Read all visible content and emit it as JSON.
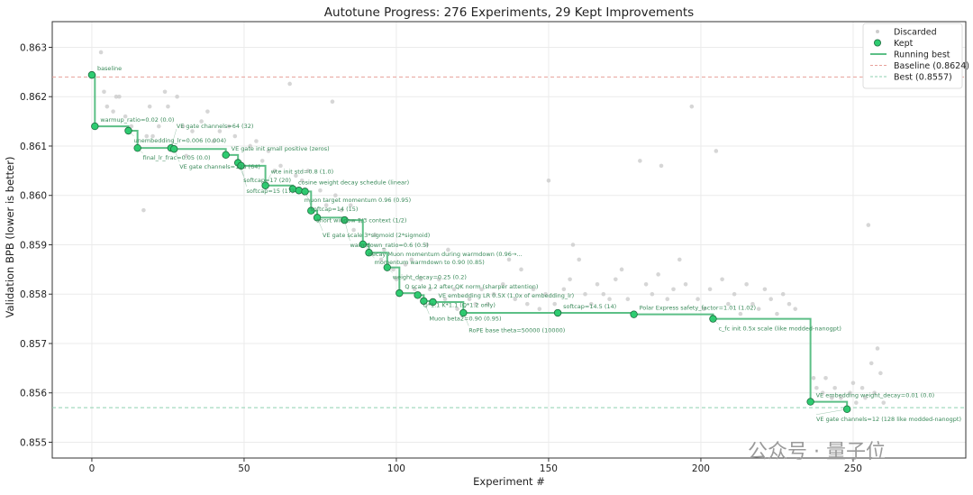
{
  "chart_data": {
    "type": "scatter",
    "title": "Autotune Progress: 276 Experiments, 29 Kept Improvements",
    "xlabel": "Experiment #",
    "ylabel": "Validation BPB (lower is better)",
    "xlim": [
      -13,
      287
    ],
    "ylim": [
      0.85468,
      0.86352
    ],
    "xticks": [
      0,
      50,
      100,
      150,
      200,
      250
    ],
    "yticks": [
      0.855,
      0.856,
      0.857,
      0.858,
      0.859,
      0.86,
      0.861,
      0.862,
      0.863
    ],
    "ytick_labels": [
      "0.855",
      "0.856",
      "0.857",
      "0.858",
      "0.859",
      "0.860",
      "0.861",
      "0.862",
      "0.863"
    ],
    "grid": true,
    "legend_position": "top-right",
    "legend": [
      "Discarded",
      "Kept",
      "Running best",
      "Baseline (0.8624)",
      "Best (0.8557)"
    ],
    "baseline": 0.8624,
    "best": 0.8557,
    "colors": {
      "kept": "#2ecc71",
      "kept_edge": "#1e6b3e",
      "running_best": "#5cbf86",
      "discarded": "#cccccc",
      "baseline": "#e8a09a",
      "best": "#8fd0b0",
      "annotation": "#3a8a5a"
    },
    "kept": [
      {
        "x": 0,
        "y": 0.86244,
        "label": "baseline"
      },
      {
        "x": 1,
        "y": 0.8614,
        "label": "warmup_ratio=0.02 (0.0)"
      },
      {
        "x": 12,
        "y": 0.86131,
        "label": "unembedding_lr=0.006 (0.004)"
      },
      {
        "x": 15,
        "y": 0.86096,
        "label": "final_lr_frac=0.05 (0.0)"
      },
      {
        "x": 26,
        "y": 0.86096,
        "label": "VE gate channels=64 (32)"
      },
      {
        "x": 27,
        "y": 0.86094,
        "label": "VE gate channels=128 (64)"
      },
      {
        "x": 44,
        "y": 0.86082,
        "label": "VE gate init small positive (zeros)"
      },
      {
        "x": 48,
        "y": 0.86066,
        "label": "softcap=17 (20)"
      },
      {
        "x": 49,
        "y": 0.8606,
        "label": "softcap=15 (17)"
      },
      {
        "x": 57,
        "y": 0.8602,
        "label": "wte init std=0.8 (1.0)"
      },
      {
        "x": 66,
        "y": 0.86013,
        "label": "cosine weight decay schedule (linear)"
      },
      {
        "x": 68,
        "y": 0.8601,
        "label": "muon target momentum 0.96 (0.95)"
      },
      {
        "x": 70,
        "y": 0.86008,
        "label": "softcap=14 (15)"
      },
      {
        "x": 72,
        "y": 0.85969,
        "label": "short window 1/3 context (1/2)"
      },
      {
        "x": 74,
        "y": 0.85955,
        "label": "VE gate scale 3*sigmoid (2*sigmoid)"
      },
      {
        "x": 83,
        "y": 0.8595,
        "label": "warmdown_ratio=0.6 (0.5)"
      },
      {
        "x": 89,
        "y": 0.85901,
        "label": "decay Muon momentum during warmdown (0.96→..."
      },
      {
        "x": 91,
        "y": 0.85884,
        "label": "momentum warmdown to 0.90 (0.85)"
      },
      {
        "x": 97,
        "y": 0.85854,
        "label": "weight_decay=0.25 (0.2)"
      },
      {
        "x": 101,
        "y": 0.85802,
        "label": "Q scale 1.2 after QK norm (sharper attention)"
      },
      {
        "x": 107,
        "y": 0.85798,
        "label": "Q*1.1 K*1.1 (Q*1.2 only)"
      },
      {
        "x": 109,
        "y": 0.85786,
        "label": "Muon beta2=0.90 (0.95)"
      },
      {
        "x": 112,
        "y": 0.85784,
        "label": "VE embedding LR 0.5X (1.0x of embedding_lr)"
      },
      {
        "x": 122,
        "y": 0.85762,
        "label": "RoPE base theta=50000 (10000)"
      },
      {
        "x": 153,
        "y": 0.85762,
        "label": "softcap=14.5 (14)"
      },
      {
        "x": 178,
        "y": 0.85759,
        "label": "Polar Express safety_factor=1.01 (1.02)"
      },
      {
        "x": 204,
        "y": 0.8575,
        "label": "c_fc init 0.5x scale (like modded-nanogpt)"
      },
      {
        "x": 236,
        "y": 0.85582,
        "label": "VE embedding weight_decay=0.01 (0.0)"
      },
      {
        "x": 248,
        "y": 0.85567,
        "label": "VE gate channels=12 (128 like modded-nanogpt)"
      }
    ],
    "discarded": [
      [
        3,
        0.8629
      ],
      [
        4,
        0.8621
      ],
      [
        5,
        0.8618
      ],
      [
        7,
        0.8617
      ],
      [
        8,
        0.862
      ],
      [
        9,
        0.862
      ],
      [
        11,
        0.8616
      ],
      [
        13,
        0.8614
      ],
      [
        17,
        0.8597
      ],
      [
        18,
        0.8612
      ],
      [
        19,
        0.8618
      ],
      [
        20,
        0.8612
      ],
      [
        22,
        0.8614
      ],
      [
        24,
        0.8621
      ],
      [
        25,
        0.8618
      ],
      [
        28,
        0.862
      ],
      [
        30,
        0.8614
      ],
      [
        31,
        0.8608
      ],
      [
        33,
        0.8613
      ],
      [
        36,
        0.8615
      ],
      [
        38,
        0.8617
      ],
      [
        40,
        0.8611
      ],
      [
        42,
        0.8613
      ],
      [
        45,
        0.8614
      ],
      [
        47,
        0.8612
      ],
      [
        52,
        0.861
      ],
      [
        54,
        0.8611
      ],
      [
        56,
        0.8607
      ],
      [
        58,
        0.8609
      ],
      [
        60,
        0.8605
      ],
      [
        62,
        0.8606
      ],
      [
        65,
        0.86226
      ],
      [
        67,
        0.8604
      ],
      [
        69,
        0.8603
      ],
      [
        71,
        0.8605
      ],
      [
        75,
        0.8601
      ],
      [
        77,
        0.8598
      ],
      [
        79,
        0.8619
      ],
      [
        80,
        0.86
      ],
      [
        82,
        0.8597
      ],
      [
        85,
        0.8598
      ],
      [
        86,
        0.8593
      ],
      [
        88,
        0.8595
      ],
      [
        90,
        0.859
      ],
      [
        93,
        0.8592
      ],
      [
        95,
        0.8587
      ],
      [
        96,
        0.8589
      ],
      [
        99,
        0.8585
      ],
      [
        100,
        0.8583
      ],
      [
        103,
        0.8586
      ],
      [
        105,
        0.8587
      ],
      [
        106,
        0.8581
      ],
      [
        108,
        0.8583
      ],
      [
        110,
        0.859
      ],
      [
        111,
        0.8581
      ],
      [
        114,
        0.8583
      ],
      [
        116,
        0.8579
      ],
      [
        117,
        0.8589
      ],
      [
        119,
        0.8581
      ],
      [
        120,
        0.8577
      ],
      [
        124,
        0.8579
      ],
      [
        126,
        0.8578
      ],
      [
        128,
        0.8581
      ],
      [
        130,
        0.8578
      ],
      [
        132,
        0.858
      ],
      [
        135,
        0.8582
      ],
      [
        137,
        0.8587
      ],
      [
        139,
        0.8579
      ],
      [
        141,
        0.8585
      ],
      [
        143,
        0.8578
      ],
      [
        145,
        0.8581
      ],
      [
        147,
        0.8577
      ],
      [
        149,
        0.858
      ],
      [
        150,
        0.8603
      ],
      [
        152,
        0.8578
      ],
      [
        155,
        0.8581
      ],
      [
        157,
        0.8583
      ],
      [
        158,
        0.859
      ],
      [
        160,
        0.8587
      ],
      [
        162,
        0.858
      ],
      [
        164,
        0.8578
      ],
      [
        166,
        0.8582
      ],
      [
        168,
        0.858
      ],
      [
        170,
        0.8579
      ],
      [
        172,
        0.8583
      ],
      [
        174,
        0.8585
      ],
      [
        176,
        0.8579
      ],
      [
        180,
        0.8607
      ],
      [
        182,
        0.8582
      ],
      [
        184,
        0.858
      ],
      [
        186,
        0.8584
      ],
      [
        187,
        0.8606
      ],
      [
        189,
        0.8579
      ],
      [
        191,
        0.8581
      ],
      [
        193,
        0.8587
      ],
      [
        195,
        0.8582
      ],
      [
        197,
        0.8618
      ],
      [
        199,
        0.8579
      ],
      [
        201,
        0.8577
      ],
      [
        203,
        0.8581
      ],
      [
        205,
        0.8609
      ],
      [
        207,
        0.8583
      ],
      [
        209,
        0.8578
      ],
      [
        211,
        0.858
      ],
      [
        213,
        0.8576
      ],
      [
        215,
        0.8582
      ],
      [
        217,
        0.8578
      ],
      [
        219,
        0.8577
      ],
      [
        221,
        0.8581
      ],
      [
        223,
        0.8579
      ],
      [
        225,
        0.8576
      ],
      [
        227,
        0.858
      ],
      [
        229,
        0.8578
      ],
      [
        231,
        0.8577
      ],
      [
        237,
        0.8563
      ],
      [
        238,
        0.8561
      ],
      [
        240,
        0.856
      ],
      [
        241,
        0.8563
      ],
      [
        243,
        0.8559
      ],
      [
        244,
        0.8561
      ],
      [
        246,
        0.8559
      ],
      [
        249,
        0.856
      ],
      [
        250,
        0.8562
      ],
      [
        251,
        0.8558
      ],
      [
        253,
        0.8561
      ],
      [
        254,
        0.8559
      ],
      [
        255,
        0.8594
      ],
      [
        256,
        0.8566
      ],
      [
        257,
        0.856
      ],
      [
        258,
        0.8569
      ],
      [
        259,
        0.8564
      ],
      [
        260,
        0.8558
      ]
    ]
  },
  "watermark": "公众号 · 量子位"
}
